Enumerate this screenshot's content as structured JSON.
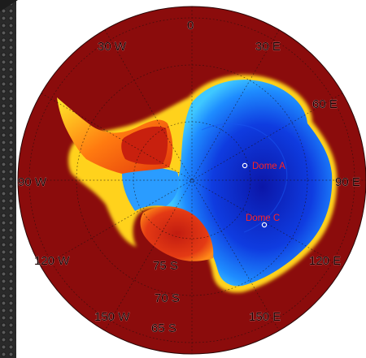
{
  "map": {
    "longitude_labels": {
      "top": "0",
      "lon_30w": "30  W",
      "lon_30e": "30  E",
      "lon_60e": "60  E",
      "lon_90w": "90  W",
      "lon_90e": "90  E",
      "lon_120w": "120  W",
      "lon_120e": "120  E",
      "lon_150w": "150  W",
      "lon_150e": "150  E"
    },
    "latitude_labels": {
      "lat_75s": "75  S",
      "lat_70s": "70  S",
      "lat_65s": "65  S"
    },
    "sites": [
      {
        "name": "Dome A"
      },
      {
        "name": "Dome C"
      }
    ],
    "colors": {
      "ocean": "#8b0c0c",
      "interior_low": "#0a1aa8",
      "interior_high": "#1e8cff",
      "margin": "#ffd21a",
      "site_marker": "#ffffff",
      "site_label": "#ff2222"
    }
  }
}
